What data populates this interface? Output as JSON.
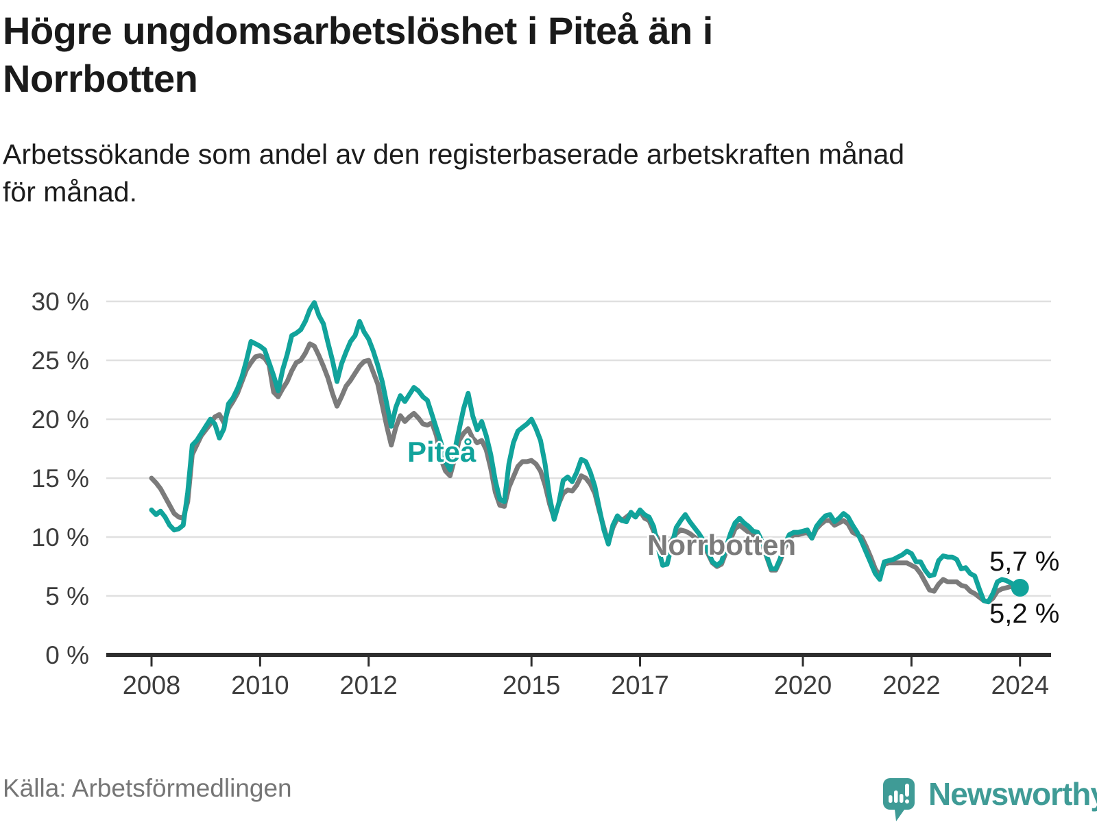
{
  "header": {
    "title_lines": [
      "Högre ungdomsarbetslöshet i Piteå än i",
      "Norrbotten"
    ],
    "subtitle_lines": [
      "Arbetssökande som andel av den registerbaserade arbetskraften månad",
      "för månad."
    ]
  },
  "footer": {
    "source": "Källa: Arbetsförmedlingen",
    "brand": "Newsworthy"
  },
  "colors": {
    "pitea": "#11a39b",
    "norrbotten": "#7b7b7b",
    "axis": "#2e2e2e",
    "gridline": "#e0e0e0",
    "tick_text": "#3d3d3d",
    "logo_teal": "#3f9b96"
  },
  "chart_data": {
    "type": "line",
    "title": "Högre ungdomsarbetslöshet i Piteå än i Norrbotten",
    "subtitle": "Arbetssökande som andel av den registerbaserade arbetskraften månad för månad.",
    "source": "Källa: Arbetsförmedlingen",
    "x_unit": "month",
    "x_start": "2008-01",
    "x_end": "2024-01",
    "x_tick_years": [
      2008,
      2010,
      2012,
      2015,
      2017,
      2020,
      2022,
      2024
    ],
    "ylim": [
      0,
      30
    ],
    "grid": "horizontal",
    "legend_position": "inline-labels",
    "y_ticks": [
      {
        "value": 0,
        "label": "0 %"
      },
      {
        "value": 5,
        "label": "5 %"
      },
      {
        "value": 10,
        "label": "10 %"
      },
      {
        "value": 15,
        "label": "15 %"
      },
      {
        "value": 20,
        "label": "20 %"
      },
      {
        "value": 25,
        "label": "25 %"
      },
      {
        "value": 30,
        "label": "30 %"
      }
    ],
    "series": [
      {
        "name": "Piteå",
        "color": "#11a39b",
        "end_label": "5,7 %",
        "last_value": 5.7,
        "last_point_marker": true,
        "values": [
          12.3,
          11.9,
          12.2,
          11.7,
          11.0,
          10.6,
          10.7,
          11.0,
          13.8,
          17.8,
          18.2,
          18.8,
          19.4,
          20.0,
          19.6,
          18.4,
          19.2,
          21.3,
          21.8,
          22.6,
          23.6,
          25.0,
          26.6,
          26.4,
          26.2,
          25.9,
          24.8,
          23.7,
          22.4,
          24.2,
          25.5,
          27.1,
          27.3,
          27.6,
          28.3,
          29.3,
          29.9,
          28.8,
          28.1,
          26.5,
          25.0,
          23.2,
          24.7,
          25.7,
          26.6,
          27.1,
          28.3,
          27.4,
          26.8,
          25.8,
          24.6,
          23.2,
          21.3,
          19.4,
          21.0,
          22.0,
          21.5,
          22.1,
          22.7,
          22.4,
          21.9,
          21.6,
          20.4,
          19.2,
          18.0,
          16.4,
          15.7,
          17.3,
          19.1,
          20.9,
          22.2,
          20.3,
          19.1,
          19.8,
          18.6,
          17.0,
          14.8,
          13.2,
          13.0,
          16.2,
          18.0,
          19.0,
          19.3,
          19.6,
          20.0,
          19.2,
          18.2,
          16.2,
          13.4,
          11.5,
          12.8,
          14.8,
          15.1,
          14.7,
          15.5,
          16.6,
          16.4,
          15.5,
          14.3,
          12.4,
          10.6,
          9.4,
          11.0,
          11.8,
          11.4,
          11.3,
          12.1,
          11.7,
          12.3,
          11.9,
          11.7,
          10.9,
          9.1,
          7.6,
          7.7,
          9.3,
          10.8,
          11.4,
          11.9,
          11.3,
          10.8,
          10.3,
          9.7,
          8.8,
          7.9,
          7.6,
          7.9,
          9.1,
          10.3,
          11.2,
          11.6,
          11.2,
          10.9,
          10.5,
          10.4,
          9.6,
          8.4,
          7.3,
          7.3,
          8.2,
          9.4,
          10.2,
          10.4,
          10.4,
          10.5,
          10.6,
          9.9,
          10.9,
          11.4,
          11.8,
          11.9,
          11.3,
          11.6,
          12.0,
          11.7,
          11.0,
          10.4,
          9.6,
          8.7,
          7.8,
          6.9,
          6.4,
          7.9,
          8.0,
          8.1,
          8.3,
          8.5,
          8.8,
          8.6,
          7.9,
          7.9,
          7.2,
          6.7,
          6.8,
          8.0,
          8.4,
          8.3,
          8.3,
          8.1,
          7.3,
          7.4,
          6.9,
          6.7,
          5.6,
          4.6,
          4.5,
          5.2,
          6.2,
          6.4,
          6.3,
          6.1,
          5.9,
          5.7
        ]
      },
      {
        "name": "Norrbotten",
        "color": "#7b7b7b",
        "end_label": "5,2 %",
        "last_value": 5.2,
        "last_point_marker": false,
        "values": [
          15.0,
          14.6,
          14.1,
          13.4,
          12.7,
          12.0,
          11.7,
          11.6,
          13.0,
          17.0,
          17.8,
          18.6,
          19.1,
          19.6,
          20.2,
          20.4,
          19.7,
          20.9,
          21.5,
          22.2,
          23.2,
          24.2,
          24.8,
          25.3,
          25.4,
          25.2,
          24.6,
          22.3,
          21.9,
          22.6,
          23.2,
          24.1,
          24.8,
          25.0,
          25.6,
          26.4,
          26.2,
          25.4,
          24.5,
          23.5,
          22.2,
          21.1,
          21.9,
          22.8,
          23.3,
          23.9,
          24.5,
          24.9,
          25.0,
          24.0,
          23.0,
          21.2,
          19.4,
          17.8,
          19.3,
          20.3,
          19.8,
          20.2,
          20.5,
          20.1,
          19.6,
          19.5,
          19.7,
          18.6,
          16.6,
          15.6,
          15.2,
          16.6,
          18.2,
          18.8,
          19.2,
          18.4,
          18.0,
          18.2,
          17.4,
          15.8,
          13.8,
          12.7,
          12.6,
          14.2,
          15.1,
          16.0,
          16.4,
          16.4,
          16.5,
          16.2,
          15.6,
          14.4,
          12.8,
          11.6,
          12.8,
          13.7,
          14.0,
          13.9,
          14.4,
          15.2,
          15.0,
          14.5,
          13.7,
          12.2,
          10.8,
          9.5,
          10.8,
          11.6,
          11.4,
          11.7,
          12.0,
          11.7,
          12.2,
          11.6,
          11.4,
          10.5,
          9.8,
          9.4,
          9.3,
          9.7,
          10.3,
          10.6,
          10.5,
          10.3,
          10.0,
          9.7,
          9.3,
          8.6,
          7.8,
          7.5,
          7.7,
          8.7,
          9.8,
          10.7,
          11.0,
          10.7,
          10.4,
          10.2,
          10.1,
          9.4,
          8.3,
          7.2,
          7.2,
          8.0,
          9.1,
          9.9,
          10.2,
          10.2,
          10.3,
          10.4,
          9.9,
          10.7,
          11.1,
          11.4,
          11.4,
          11.0,
          11.2,
          11.4,
          11.1,
          10.4,
          10.2,
          10.0,
          9.2,
          8.3,
          7.3,
          6.7,
          7.7,
          7.8,
          7.8,
          7.8,
          7.8,
          7.8,
          7.6,
          7.4,
          6.9,
          6.2,
          5.5,
          5.4,
          6.0,
          6.4,
          6.2,
          6.2,
          6.2,
          5.9,
          5.8,
          5.4,
          5.2,
          4.9,
          4.6,
          4.5,
          4.8,
          5.4,
          5.6,
          5.7,
          5.8,
          5.6,
          5.2
        ]
      }
    ]
  }
}
